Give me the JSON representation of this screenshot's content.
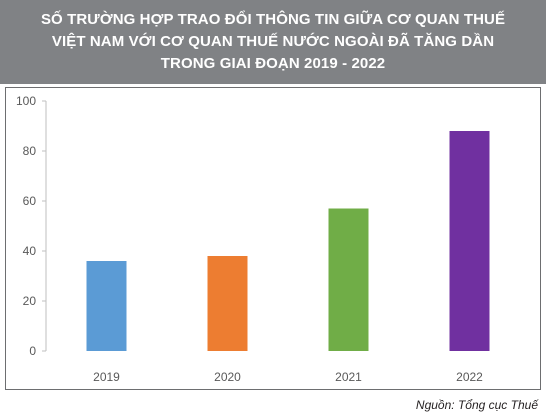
{
  "title": {
    "lines": [
      "SỐ TRƯỜNG HỢP TRAO ĐỔI THÔNG TIN GIỮA CƠ QUAN THUẾ",
      "VIỆT NAM VỚI CƠ QUAN THUẾ NƯỚC NGOÀI ĐÃ TĂNG DẦN",
      "TRONG GIAI ĐOẠN 2019 - 2022"
    ]
  },
  "source": "Nguồn: Tổng cục Thuế",
  "colors": {
    "title_background": "#808285",
    "axis_text": "#595959"
  },
  "chart_data": {
    "type": "bar",
    "categories": [
      "2019",
      "2020",
      "2021",
      "2022"
    ],
    "values": [
      36,
      38,
      57,
      88
    ],
    "bar_colors": [
      "#5b9bd5",
      "#ed7d31",
      "#70ad47",
      "#7030a0"
    ],
    "title": "",
    "xlabel": "",
    "ylabel": "",
    "ylim": [
      0,
      100
    ],
    "yticks": [
      0,
      20,
      40,
      60,
      80,
      100
    ],
    "grid": false,
    "legend": false
  }
}
